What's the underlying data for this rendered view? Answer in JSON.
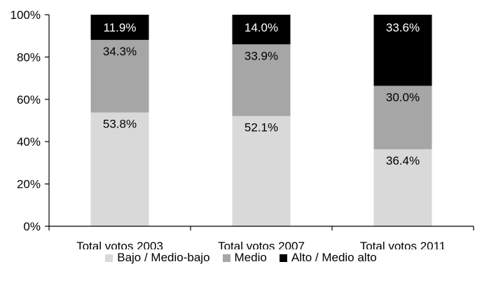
{
  "chart_data": {
    "type": "bar",
    "stacked": true,
    "categories": [
      "Total votos 2003",
      "Total votos 2007",
      "Total votos 2011"
    ],
    "series": [
      {
        "name": "Bajo / Medio-bajo",
        "color": "#d9d9d9",
        "values": [
          53.8,
          52.1,
          36.4
        ],
        "labels": [
          "53.8%",
          "52.1%",
          "36.4%"
        ]
      },
      {
        "name": "Medio",
        "color": "#a6a6a6",
        "values": [
          34.3,
          33.9,
          30.0
        ],
        "labels": [
          "34.3%",
          "33.9%",
          "30.0%"
        ]
      },
      {
        "name": "Alto / Medio alto",
        "color": "#000000",
        "values": [
          11.9,
          14.0,
          33.6
        ],
        "labels": [
          "11.9%",
          "14.0%",
          "33.6%"
        ]
      }
    ],
    "yticks": [
      "0%",
      "20%",
      "40%",
      "60%",
      "80%",
      "100%"
    ],
    "ylim": [
      0,
      100
    ],
    "grid": false,
    "legend_position": "bottom"
  }
}
